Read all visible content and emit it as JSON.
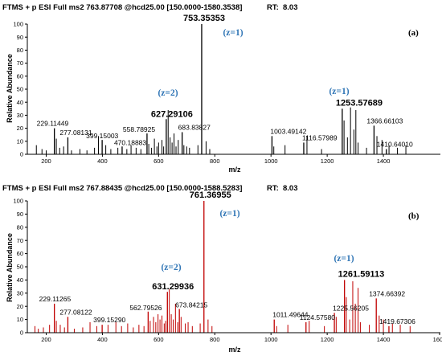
{
  "chart_data": [
    {
      "type": "bar",
      "header": "FTMS + p ESI Full ms2 763.87708 @hcd25.00 [150.0000-1580.3538]",
      "rt_label": "RT:",
      "rt_value": "8.03",
      "panel_tag": "(a)",
      "xlabel": "m/z",
      "ylabel": "Relative Abundance",
      "xlim": [
        150,
        1600
      ],
      "ylim": [
        0,
        100
      ],
      "x_ticks": [
        "200",
        "400",
        "600",
        "800",
        "1000",
        "1200",
        "1400"
      ],
      "y_ticks": [
        "0",
        "10",
        "20",
        "30",
        "40",
        "50",
        "60",
        "70",
        "80",
        "90",
        "100"
      ],
      "color": "#000000",
      "peaks": [
        {
          "mz": 229.11449,
          "intensity": 20,
          "label": "229.11449"
        },
        {
          "mz": 277.08131,
          "intensity": 13,
          "label": "277.08131"
        },
        {
          "mz": 399.15003,
          "intensity": 11,
          "label": "399.15003"
        },
        {
          "mz": 470.18883,
          "intensity": 6,
          "label": "470.18883"
        },
        {
          "mz": 558.78925,
          "intensity": 16,
          "label": "558.78925"
        },
        {
          "mz": 627.29106,
          "intensity": 27,
          "label": "627.29106"
        },
        {
          "mz": 683.83827,
          "intensity": 17,
          "label": "683.83827"
        },
        {
          "mz": 753.35353,
          "intensity": 100,
          "label": "753.35353"
        },
        {
          "mz": 1003.49142,
          "intensity": 14,
          "label": "1003.49142"
        },
        {
          "mz": 1116.57989,
          "intensity": 9,
          "label": "1116.57989"
        },
        {
          "mz": 1253.57689,
          "intensity": 35,
          "label": "1253.57689"
        },
        {
          "mz": 1366.66103,
          "intensity": 22,
          "label": "1366.66103"
        },
        {
          "mz": 1410.6401,
          "intensity": 4,
          "label": "1410.64010"
        }
      ],
      "minor_peaks": [
        [
          165,
          7
        ],
        [
          185,
          4
        ],
        [
          200,
          3
        ],
        [
          236,
          12
        ],
        [
          248,
          5
        ],
        [
          262,
          6
        ],
        [
          290,
          3
        ],
        [
          320,
          4
        ],
        [
          345,
          3
        ],
        [
          372,
          5
        ],
        [
          386,
          14
        ],
        [
          412,
          7
        ],
        [
          430,
          4
        ],
        [
          455,
          5
        ],
        [
          487,
          4
        ],
        [
          502,
          7
        ],
        [
          520,
          5
        ],
        [
          537,
          4
        ],
        [
          565,
          8
        ],
        [
          575,
          5
        ],
        [
          585,
          12
        ],
        [
          594,
          6
        ],
        [
          600,
          9
        ],
        [
          612,
          11
        ],
        [
          618,
          6
        ],
        [
          634,
          34
        ],
        [
          641,
          13
        ],
        [
          648,
          9
        ],
        [
          655,
          16
        ],
        [
          662,
          6
        ],
        [
          670,
          11
        ],
        [
          690,
          7
        ],
        [
          700,
          6
        ],
        [
          710,
          5
        ],
        [
          740,
          7
        ],
        [
          769,
          10
        ],
        [
          782,
          4
        ],
        [
          1010,
          6
        ],
        [
          1050,
          7
        ],
        [
          1128,
          14
        ],
        [
          1180,
          4
        ],
        [
          1260,
          26
        ],
        [
          1272,
          13
        ],
        [
          1283,
          36
        ],
        [
          1295,
          19
        ],
        [
          1302,
          34
        ],
        [
          1310,
          9
        ],
        [
          1340,
          5
        ],
        [
          1377,
          14
        ],
        [
          1395,
          11
        ],
        [
          1420,
          7
        ],
        [
          1450,
          5
        ],
        [
          1480,
          7
        ]
      ],
      "annotations": [
        "(z=1)",
        "(z=2)",
        "(z=1)"
      ]
    },
    {
      "type": "bar",
      "header": "FTMS + p ESI Full ms2 767.88435 @hcd25.00 [150.0000-1588.5283]",
      "rt_label": "RT:",
      "rt_value": "8.03",
      "panel_tag": "(b)",
      "xlabel": "m/z",
      "ylabel": "Relative Abundance",
      "xlim": [
        150,
        1600
      ],
      "ylim": [
        0,
        100
      ],
      "x_ticks": [
        "200",
        "400",
        "600",
        "800",
        "1000",
        "1200",
        "1400",
        "1600"
      ],
      "y_ticks": [
        "0",
        "10",
        "20",
        "30",
        "40",
        "50",
        "60",
        "70",
        "80",
        "90",
        "100"
      ],
      "color": "#c00000",
      "peaks": [
        {
          "mz": 229.11265,
          "intensity": 22,
          "label": "229.11265"
        },
        {
          "mz": 277.08122,
          "intensity": 12,
          "label": "277.08122"
        },
        {
          "mz": 399.1529,
          "intensity": 6,
          "label": "399.15290"
        },
        {
          "mz": 562.79526,
          "intensity": 16,
          "label": "562.79526"
        },
        {
          "mz": 631.29936,
          "intensity": 31,
          "label": "631.29936"
        },
        {
          "mz": 673.84215,
          "intensity": 18,
          "label": "673.84215"
        },
        {
          "mz": 761.36955,
          "intensity": 100,
          "label": "761.36955"
        },
        {
          "mz": 1011.49644,
          "intensity": 10,
          "label": "1011.49644"
        },
        {
          "mz": 1124.5758,
          "intensity": 8,
          "label": "1124.57580"
        },
        {
          "mz": 1225.56205,
          "intensity": 15,
          "label": "1225.56205"
        },
        {
          "mz": 1261.59113,
          "intensity": 40,
          "label": "1261.59113"
        },
        {
          "mz": 1374.66392,
          "intensity": 26,
          "label": "1374.66392"
        },
        {
          "mz": 1419.67306,
          "intensity": 5,
          "label": "1419.67306"
        }
      ],
      "minor_peaks": [
        [
          160,
          5
        ],
        [
          172,
          3
        ],
        [
          190,
          4
        ],
        [
          212,
          6
        ],
        [
          236,
          9
        ],
        [
          250,
          6
        ],
        [
          265,
          4
        ],
        [
          300,
          3
        ],
        [
          330,
          4
        ],
        [
          356,
          8
        ],
        [
          380,
          5
        ],
        [
          420,
          6
        ],
        [
          448,
          8
        ],
        [
          468,
          5
        ],
        [
          490,
          7
        ],
        [
          510,
          4
        ],
        [
          530,
          6
        ],
        [
          548,
          5
        ],
        [
          570,
          9
        ],
        [
          582,
          12
        ],
        [
          590,
          8
        ],
        [
          598,
          14
        ],
        [
          605,
          10
        ],
        [
          612,
          13
        ],
        [
          620,
          7
        ],
        [
          625,
          9
        ],
        [
          638,
          33
        ],
        [
          645,
          14
        ],
        [
          652,
          10
        ],
        [
          660,
          22
        ],
        [
          668,
          8
        ],
        [
          680,
          12
        ],
        [
          695,
          7
        ],
        [
          705,
          8
        ],
        [
          720,
          5
        ],
        [
          748,
          7
        ],
        [
          776,
          10
        ],
        [
          790,
          5
        ],
        [
          1020,
          5
        ],
        [
          1060,
          6
        ],
        [
          1136,
          9
        ],
        [
          1190,
          5
        ],
        [
          1232,
          12
        ],
        [
          1268,
          27
        ],
        [
          1280,
          10
        ],
        [
          1291,
          39
        ],
        [
          1300,
          22
        ],
        [
          1310,
          34
        ],
        [
          1318,
          8
        ],
        [
          1350,
          6
        ],
        [
          1385,
          13
        ],
        [
          1400,
          10
        ],
        [
          1432,
          7
        ],
        [
          1460,
          6
        ],
        [
          1495,
          5
        ]
      ],
      "annotations": [
        "(z=1)",
        "(z=2)",
        "(z=1)"
      ]
    }
  ]
}
